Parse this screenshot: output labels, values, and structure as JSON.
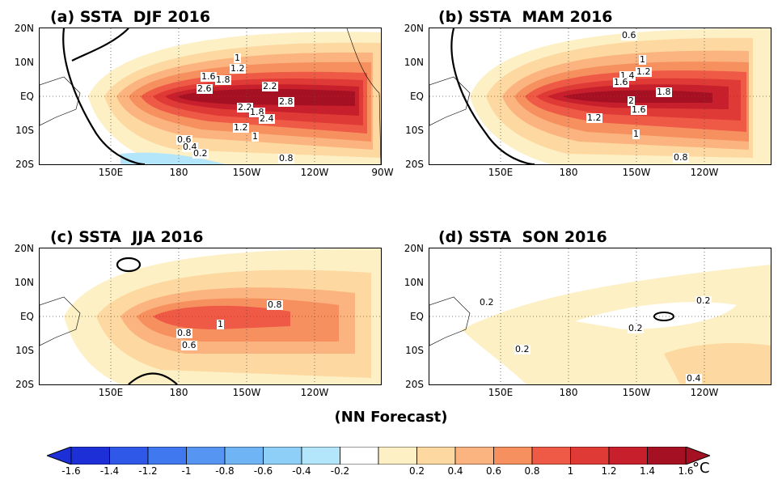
{
  "panels": [
    {
      "title": "(a) SSTA  DJF 2016",
      "labels": [
        "1",
        "1.2",
        "1.6",
        "1.8",
        "2.6",
        "2.2",
        "2.8",
        "2.2",
        "1.8",
        "2.4",
        "1.2",
        "1",
        "0.6",
        "0.4",
        "0.2",
        "0.8"
      ]
    },
    {
      "title": "(b) SSTA  MAM 2016",
      "labels": [
        "0.6",
        "1",
        "1.2",
        "1.4",
        "1.6",
        "1.8",
        "2",
        "1.6",
        "1.2",
        "1",
        "0.8"
      ]
    },
    {
      "title": "(c) SSTA  JJA 2016",
      "labels": [
        "0.8",
        "1",
        "0.8",
        "0.6"
      ]
    },
    {
      "title": "(d) SSTA  SON 2016",
      "labels": [
        "0.2",
        "0.2",
        "0.2",
        "0.2",
        "0.4"
      ]
    }
  ],
  "lat_ticks": [
    "20N",
    "10N",
    "EQ",
    "10S",
    "20S"
  ],
  "lon_ticks": [
    "150E",
    "180",
    "150W",
    "120W",
    "90W"
  ],
  "footer": "(NN Forecast)",
  "colorbar": {
    "levels": [
      "-1.6",
      "-1.4",
      "-1.2",
      "-1",
      "-0.8",
      "-0.6",
      "-0.4",
      "-0.2",
      "0.2",
      "0.4",
      "0.6",
      "0.8",
      "1",
      "1.2",
      "1.4",
      "1.6"
    ],
    "colors": [
      "#1d2fd6",
      "#2f57e8",
      "#3f78ef",
      "#5696f2",
      "#6fb4f5",
      "#8dcff7",
      "#b3e5fb",
      "#ffffff",
      "#fdf0c4",
      "#fdd8a0",
      "#fbb47f",
      "#f6905f",
      "#ee5a45",
      "#e03a36",
      "#c71f2c",
      "#a51122"
    ],
    "unit": "°C"
  }
}
